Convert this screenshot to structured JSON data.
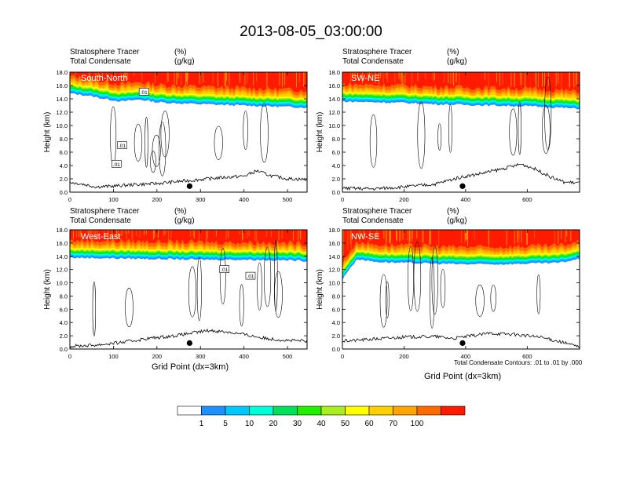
{
  "title": "2013-08-05_03:00:00",
  "colors": {
    "levels": [
      "#ffffff",
      "#1e90ff",
      "#00c8ff",
      "#00ffd8",
      "#00e05a",
      "#22ee00",
      "#a8ee20",
      "#ffff00",
      "#ffd000",
      "#ffa500",
      "#ff6a00",
      "#ff1a00"
    ],
    "contour": "#000000",
    "terrain": "#000000"
  },
  "colorbar": {
    "labels": [
      "1",
      "5",
      "10",
      "20",
      "30",
      "40",
      "50",
      "60",
      "70",
      "100"
    ]
  },
  "footnote": "Total Condensate Contours: .01 to .01 by .000",
  "chart_data": [
    {
      "type": "heatmap",
      "name": "South-North",
      "title_left_1": "Stratosphere Tracer",
      "title_left_2": "Total Condensate",
      "title_right_1": "(%)",
      "title_right_2": "(g/kg)",
      "ylabel": "Height (km)",
      "xlabel": "",
      "xlim": [
        0,
        545
      ],
      "ylim": [
        0,
        18
      ],
      "xticks": [
        "0",
        "100",
        "200",
        "300",
        "400",
        "500"
      ],
      "xtick_values": [
        0,
        100,
        200,
        300,
        400,
        500
      ],
      "yticks": [
        "0.0",
        "2.0",
        "4.0",
        "6.0",
        "8.0",
        "10.0",
        "12.0",
        "14.0",
        "16.0",
        "18.0"
      ],
      "tracer_base_km": [
        [
          0,
          14.8
        ],
        [
          40,
          14.5
        ],
        [
          80,
          14.0
        ],
        [
          120,
          13.6
        ],
        [
          160,
          13.9
        ],
        [
          200,
          13.5
        ],
        [
          260,
          13.3
        ],
        [
          350,
          13.1
        ],
        [
          450,
          12.9
        ],
        [
          545,
          12.7
        ]
      ],
      "terrain_km": [
        [
          0,
          1.5
        ],
        [
          30,
          1.2
        ],
        [
          60,
          0.8
        ],
        [
          100,
          0.9
        ],
        [
          140,
          1.1
        ],
        [
          200,
          1.3
        ],
        [
          250,
          1.6
        ],
        [
          300,
          1.9
        ],
        [
          350,
          2.2
        ],
        [
          400,
          2.4
        ],
        [
          430,
          3.2
        ],
        [
          460,
          2.5
        ],
        [
          500,
          2.0
        ],
        [
          545,
          1.9
        ]
      ],
      "marker_x": 275,
      "contour_labels": [
        ".01",
        ".01",
        ".01"
      ],
      "contour_label_x": [
        170,
        120,
        107
      ],
      "contour_label_y": [
        15.0,
        7.0,
        4.2
      ]
    },
    {
      "type": "heatmap",
      "name": "SW-NE",
      "title_left_1": "Stratosphere Tracer",
      "title_left_2": "Total Condensate",
      "title_right_1": "(%)",
      "title_right_2": "(g/kg)",
      "ylabel": "Height (km)",
      "xlabel": "",
      "xlim": [
        0,
        770
      ],
      "ylim": [
        0,
        18
      ],
      "xticks": [
        "0",
        "200",
        "400",
        "600"
      ],
      "xtick_values": [
        0,
        200,
        400,
        600
      ],
      "yticks": [
        "0.0",
        "2.0",
        "4.0",
        "6.0",
        "8.0",
        "10.0",
        "12.0",
        "14.0",
        "16.0",
        "18.0"
      ],
      "tracer_base_km": [
        [
          0,
          13.6
        ],
        [
          100,
          13.5
        ],
        [
          200,
          13.4
        ],
        [
          300,
          13.2
        ],
        [
          400,
          13.1
        ],
        [
          500,
          13.0
        ],
        [
          600,
          12.9
        ],
        [
          700,
          12.7
        ],
        [
          770,
          12.5
        ]
      ],
      "terrain_km": [
        [
          0,
          0.6
        ],
        [
          100,
          0.5
        ],
        [
          200,
          0.8
        ],
        [
          300,
          1.2
        ],
        [
          380,
          2.2
        ],
        [
          450,
          2.8
        ],
        [
          520,
          3.5
        ],
        [
          580,
          4.2
        ],
        [
          620,
          3.6
        ],
        [
          680,
          2.2
        ],
        [
          720,
          1.5
        ],
        [
          770,
          1.4
        ]
      ],
      "marker_x": 390,
      "contour_labels": [],
      "contour_label_x": [],
      "contour_label_y": []
    },
    {
      "type": "heatmap",
      "name": "West-East",
      "title_left_1": "Stratosphere Tracer",
      "title_left_2": "Total Condensate",
      "title_right_1": "(%)",
      "title_right_2": "(g/kg)",
      "ylabel": "Height (km)",
      "xlabel": "Grid Point (dx=3km)",
      "xlim": [
        0,
        545
      ],
      "ylim": [
        0,
        18
      ],
      "xticks": [
        "0",
        "100",
        "200",
        "300",
        "400",
        "500"
      ],
      "xtick_values": [
        0,
        100,
        200,
        300,
        400,
        500
      ],
      "yticks": [
        "0.0",
        "2.0",
        "4.0",
        "6.0",
        "8.0",
        "10.0",
        "12.0",
        "14.0",
        "16.0",
        "18.0"
      ],
      "tracer_base_km": [
        [
          0,
          13.8
        ],
        [
          100,
          13.7
        ],
        [
          200,
          13.6
        ],
        [
          300,
          13.5
        ],
        [
          400,
          13.5
        ],
        [
          500,
          13.4
        ],
        [
          545,
          13.3
        ]
      ],
      "terrain_km": [
        [
          0,
          0.4
        ],
        [
          60,
          0.6
        ],
        [
          120,
          1.0
        ],
        [
          180,
          1.6
        ],
        [
          240,
          2.0
        ],
        [
          280,
          2.4
        ],
        [
          320,
          2.8
        ],
        [
          360,
          2.6
        ],
        [
          400,
          2.2
        ],
        [
          450,
          1.6
        ],
        [
          500,
          1.3
        ],
        [
          545,
          1.2
        ]
      ],
      "marker_x": 275,
      "contour_labels": [
        ".01",
        ".01"
      ],
      "contour_label_x": [
        355,
        415
      ],
      "contour_label_y": [
        12.0,
        11.0
      ]
    },
    {
      "type": "heatmap",
      "name": "NW-SE",
      "title_left_1": "Stratosphere Tracer",
      "title_left_2": "Total Condensate",
      "title_right_1": "(%)",
      "title_right_2": "(g/kg)",
      "ylabel": "Height (km)",
      "xlabel": "Grid Point (dx=3km)",
      "xlim": [
        0,
        770
      ],
      "ylim": [
        0,
        18
      ],
      "xticks": [
        "0",
        "200",
        "400",
        "600"
      ],
      "xtick_values": [
        0,
        200,
        400,
        600
      ],
      "yticks": [
        "0.0",
        "2.0",
        "4.0",
        "6.0",
        "8.0",
        "10.0",
        "12.0",
        "14.0",
        "16.0",
        "18.0"
      ],
      "tracer_base_km": [
        [
          0,
          10.4
        ],
        [
          20,
          12.0
        ],
        [
          50,
          13.6
        ],
        [
          100,
          13.2
        ],
        [
          200,
          13.0
        ],
        [
          300,
          12.9
        ],
        [
          400,
          12.8
        ],
        [
          500,
          12.8
        ],
        [
          600,
          12.9
        ],
        [
          700,
          13.0
        ],
        [
          770,
          13.6
        ]
      ],
      "terrain_km": [
        [
          0,
          1.2
        ],
        [
          100,
          1.5
        ],
        [
          200,
          1.8
        ],
        [
          300,
          1.9
        ],
        [
          360,
          1.6
        ],
        [
          420,
          2.0
        ],
        [
          480,
          2.4
        ],
        [
          560,
          2.2
        ],
        [
          640,
          1.8
        ],
        [
          700,
          1.2
        ],
        [
          770,
          0.3
        ]
      ],
      "marker_x": 390,
      "contour_labels": [],
      "contour_label_x": [],
      "contour_label_y": []
    }
  ]
}
